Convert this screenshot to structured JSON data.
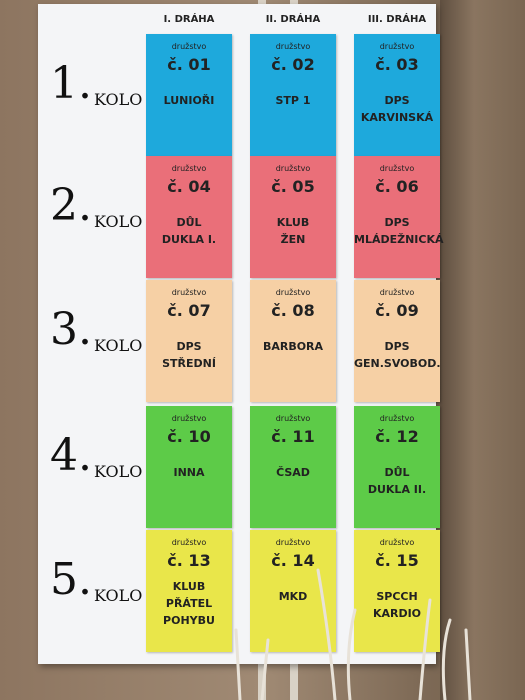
{
  "columns": [
    "I. DRÁHA",
    "II. DRÁHA",
    "III. DRÁHA"
  ],
  "rows": [
    {
      "number": "1.",
      "word": "KOLO",
      "cards": [
        {
          "caption": "družstvo",
          "number": "č. 01",
          "name": [
            "LUNIOŘI"
          ]
        },
        {
          "caption": "družstvo",
          "number": "č. 02",
          "name": [
            "STP 1"
          ]
        },
        {
          "caption": "družstvo",
          "number": "č. 03",
          "name": [
            "DPS",
            "KARVINSKÁ"
          ]
        }
      ]
    },
    {
      "number": "2.",
      "word": "KOLO",
      "cards": [
        {
          "caption": "družstvo",
          "number": "č. 04",
          "name": [
            "DŮL",
            "DUKLA I."
          ]
        },
        {
          "caption": "družstvo",
          "number": "č. 05",
          "name": [
            "KLUB",
            "ŽEN"
          ]
        },
        {
          "caption": "družstvo",
          "number": "č. 06",
          "name": [
            "DPS",
            "MLÁDEŽNICKÁ"
          ]
        }
      ]
    },
    {
      "number": "3.",
      "word": "KOLO",
      "cards": [
        {
          "caption": "družstvo",
          "number": "č. 07",
          "name": [
            "DPS",
            "STŘEDNÍ"
          ]
        },
        {
          "caption": "družstvo",
          "number": "č. 08",
          "name": [
            "BARBORA"
          ]
        },
        {
          "caption": "družstvo",
          "number": "č. 09",
          "name": [
            "DPS",
            "GEN.SVOBOD."
          ]
        }
      ]
    },
    {
      "number": "4.",
      "word": "KOLO",
      "cards": [
        {
          "caption": "družstvo",
          "number": "č. 10",
          "name": [
            "INNA"
          ]
        },
        {
          "caption": "družstvo",
          "number": "č. 11",
          "name": [
            "ČSAD"
          ]
        },
        {
          "caption": "družstvo",
          "number": "č. 12",
          "name": [
            "DŮL",
            "DUKLA II."
          ]
        }
      ]
    },
    {
      "number": "5.",
      "word": "KOLO",
      "cards": [
        {
          "caption": "družstvo",
          "number": "č. 13",
          "name": [
            "KLUB",
            "PŘÁTEL",
            "POHYBU"
          ]
        },
        {
          "caption": "družstvo",
          "number": "č. 14",
          "name": [
            "MKD"
          ]
        },
        {
          "caption": "družstvo",
          "number": "č. 15",
          "name": [
            "SPCCH",
            "KARDIO"
          ]
        }
      ]
    }
  ]
}
